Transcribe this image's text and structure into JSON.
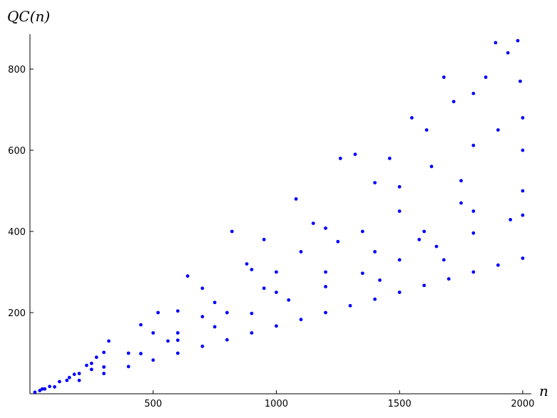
{
  "chart_data": {
    "type": "scatter",
    "x_label": "n",
    "y_label": "QC(n)",
    "color": "#0000ff",
    "xlim": [
      0,
      2035
    ],
    "ylim": [
      0,
      886
    ],
    "xticks": [
      500,
      1000,
      1500,
      2000
    ],
    "yticks": [
      200,
      400,
      600,
      800
    ],
    "grid": false,
    "x": [
      20,
      40,
      60,
      80,
      50,
      120,
      160,
      180,
      250,
      230,
      270,
      100,
      200,
      300,
      400,
      500,
      600,
      700,
      800,
      900,
      1000,
      1100,
      1200,
      1300,
      1400,
      1500,
      1600,
      1700,
      1800,
      1900,
      2000,
      150,
      300,
      450,
      600,
      750,
      900,
      1050,
      1200,
      1350,
      1500,
      1650,
      1800,
      1950,
      2000,
      200,
      400,
      600,
      800,
      1000,
      1200,
      1400,
      1600,
      1800,
      2000,
      250,
      500,
      750,
      1000,
      1250,
      1500,
      1750,
      2000,
      300,
      600,
      900,
      1200,
      1500,
      1800,
      2000,
      320,
      450,
      520,
      640,
      700,
      820,
      880,
      950,
      1080,
      1150,
      1260,
      1320,
      1400,
      1460,
      1550,
      1610,
      1680,
      1720,
      1800,
      1850,
      1890,
      1940,
      1980,
      1990,
      1630,
      1900,
      1750,
      1350,
      1100,
      950,
      700,
      560,
      1420,
      1680,
      1580
    ],
    "y": [
      4,
      8,
      12,
      18,
      12,
      30,
      40,
      48,
      60,
      70,
      90,
      17,
      33,
      50,
      67,
      83,
      100,
      117,
      133,
      150,
      167,
      183,
      200,
      217,
      233,
      250,
      267,
      283,
      300,
      317,
      334,
      33,
      66,
      99,
      132,
      165,
      198,
      231,
      264,
      297,
      330,
      363,
      396,
      429,
      440,
      50,
      100,
      150,
      200,
      250,
      300,
      350,
      400,
      450,
      500,
      75,
      150,
      225,
      300,
      375,
      450,
      525,
      600,
      102,
      204,
      306,
      408,
      510,
      612,
      680,
      130,
      170,
      200,
      290,
      260,
      400,
      320,
      380,
      480,
      420,
      580,
      590,
      520,
      580,
      680,
      650,
      780,
      720,
      740,
      780,
      865,
      840,
      870,
      770,
      560,
      650,
      470,
      400,
      350,
      260,
      190,
      130,
      280,
      330,
      380
    ]
  }
}
